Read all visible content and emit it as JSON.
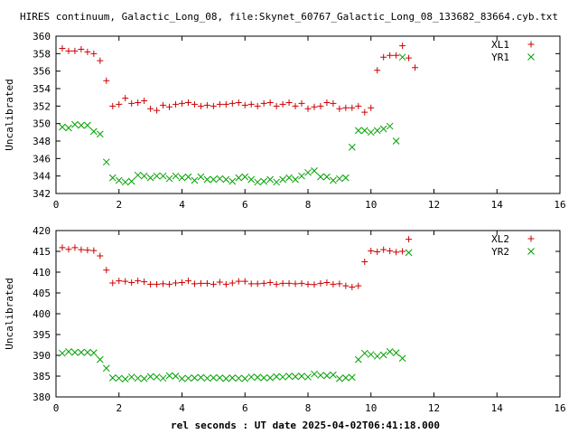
{
  "title": "HIRES continuum, Galactic_Long_08, file:Skynet_60767_Galactic_Long_08_133682_83664.cyb.txt",
  "xlabel": "rel seconds : UT date 2025-04-02T06:41:18.000",
  "chart_data": [
    {
      "type": "scatter",
      "ylabel": "Uncalibrated",
      "xlim": [
        0,
        16
      ],
      "ylim": [
        342,
        360
      ],
      "xticks": [
        0,
        2,
        4,
        6,
        8,
        10,
        12,
        14,
        16
      ],
      "yticks": [
        342,
        344,
        346,
        348,
        350,
        352,
        354,
        356,
        358,
        360
      ],
      "legend_position": "top-right",
      "x": [
        0.2,
        0.4,
        0.6,
        0.8,
        1.0,
        1.2,
        1.4,
        1.6,
        1.8,
        2.0,
        2.2,
        2.4,
        2.6,
        2.8,
        3.0,
        3.2,
        3.4,
        3.6,
        3.8,
        4.0,
        4.2,
        4.4,
        4.6,
        4.8,
        5.0,
        5.2,
        5.4,
        5.6,
        5.8,
        6.0,
        6.2,
        6.4,
        6.6,
        6.8,
        7.0,
        7.2,
        7.4,
        7.6,
        7.8,
        8.0,
        8.2,
        8.4,
        8.6,
        8.8,
        9.0,
        9.2,
        9.4,
        9.6,
        9.8,
        10.0,
        10.2,
        10.4,
        10.6,
        10.8,
        11.0,
        11.2,
        11.4,
        11.6,
        11.8,
        12.0,
        12.2,
        12.4,
        12.6,
        12.8,
        13.0,
        13.2,
        13.4,
        13.6,
        13.8,
        14.0,
        14.2
      ],
      "series": [
        {
          "name": "XL1",
          "marker": "plus",
          "color": "#cc0000",
          "values": [
            358.6,
            358.3,
            358.3,
            358.5,
            358.2,
            358.0,
            357.2,
            354.9,
            352.0,
            352.2,
            352.9,
            352.3,
            352.4,
            352.6,
            351.7,
            351.5,
            352.1,
            351.9,
            352.2,
            352.3,
            352.4,
            352.2,
            352.0,
            352.1,
            352.0,
            352.2,
            352.2,
            352.3,
            352.4,
            352.1,
            352.2,
            352.0,
            352.3,
            352.4,
            352.0,
            352.2,
            352.4,
            352.0,
            352.3,
            351.7,
            351.9,
            352.0,
            352.4,
            352.3,
            351.7,
            351.8,
            351.8,
            352.0,
            351.3,
            351.8,
            356.1,
            357.6,
            357.8,
            357.8,
            358.9,
            357.5,
            356.4,
            null,
            null,
            null,
            null,
            null,
            null,
            null,
            null,
            null,
            null,
            null,
            null,
            null,
            null
          ]
        },
        {
          "name": "YR1",
          "marker": "cross",
          "color": "#00a000",
          "values": [
            349.6,
            349.5,
            349.9,
            349.8,
            349.8,
            349.1,
            348.8,
            345.6,
            343.8,
            343.5,
            343.3,
            343.4,
            344.1,
            344.0,
            343.8,
            344.0,
            344.0,
            343.7,
            344.0,
            343.8,
            343.9,
            343.5,
            343.9,
            343.6,
            343.6,
            343.7,
            343.6,
            343.4,
            343.8,
            343.9,
            343.6,
            343.3,
            343.4,
            343.6,
            343.3,
            343.6,
            343.8,
            343.6,
            344.0,
            344.4,
            344.6,
            343.9,
            343.9,
            343.5,
            343.7,
            343.8,
            347.3,
            349.2,
            349.2,
            349.0,
            349.2,
            349.4,
            349.7,
            348.0,
            357.6,
            null,
            null,
            null,
            null,
            null,
            null,
            null,
            null,
            null,
            null,
            null,
            null,
            null,
            null,
            null,
            null
          ]
        }
      ]
    },
    {
      "type": "scatter",
      "ylabel": "Uncalibrated",
      "xlim": [
        0,
        16
      ],
      "ylim": [
        380,
        420
      ],
      "xticks": [
        0,
        2,
        4,
        6,
        8,
        10,
        12,
        14,
        16
      ],
      "yticks": [
        380,
        385,
        390,
        395,
        400,
        405,
        410,
        415,
        420
      ],
      "legend_position": "top-right",
      "series": [
        {
          "name": "XL2",
          "marker": "plus",
          "color": "#cc0000",
          "values": [
            415.9,
            415.5,
            415.9,
            415.4,
            415.3,
            415.2,
            413.9,
            410.5,
            407.4,
            407.9,
            407.8,
            407.5,
            407.9,
            407.7,
            407.1,
            407.1,
            407.2,
            407.1,
            407.4,
            407.5,
            407.9,
            407.2,
            407.3,
            407.3,
            407.1,
            407.6,
            407.1,
            407.4,
            407.8,
            407.8,
            407.2,
            407.2,
            407.3,
            407.5,
            407.1,
            407.3,
            407.3,
            407.2,
            407.3,
            407.1,
            407.0,
            407.3,
            407.5,
            407.1,
            407.2,
            406.7,
            406.4,
            406.7,
            412.5,
            415.1,
            414.9,
            415.4,
            415.1,
            414.8,
            415.0,
            417.9,
            null,
            null,
            null,
            null,
            null,
            null,
            null,
            null,
            null,
            null,
            null,
            null,
            null,
            null,
            null
          ]
        },
        {
          "name": "YR2",
          "marker": "cross",
          "color": "#00a000",
          "values": [
            390.5,
            390.9,
            390.7,
            390.7,
            390.7,
            390.6,
            389.0,
            386.9,
            384.6,
            384.5,
            384.3,
            384.8,
            384.5,
            384.4,
            384.9,
            384.8,
            384.5,
            385.1,
            385.0,
            384.4,
            384.5,
            384.6,
            384.7,
            384.5,
            384.6,
            384.6,
            384.4,
            384.6,
            384.5,
            384.4,
            384.8,
            384.7,
            384.6,
            384.6,
            384.9,
            384.8,
            385.0,
            384.9,
            385.0,
            384.8,
            385.5,
            385.2,
            385.1,
            385.3,
            384.4,
            384.6,
            384.7,
            389.0,
            390.5,
            390.2,
            389.8,
            390.1,
            390.9,
            390.6,
            389.3,
            414.7,
            null,
            null,
            null,
            null,
            null,
            null,
            null,
            null,
            null,
            null,
            null,
            null,
            null,
            null,
            null
          ]
        }
      ]
    }
  ]
}
